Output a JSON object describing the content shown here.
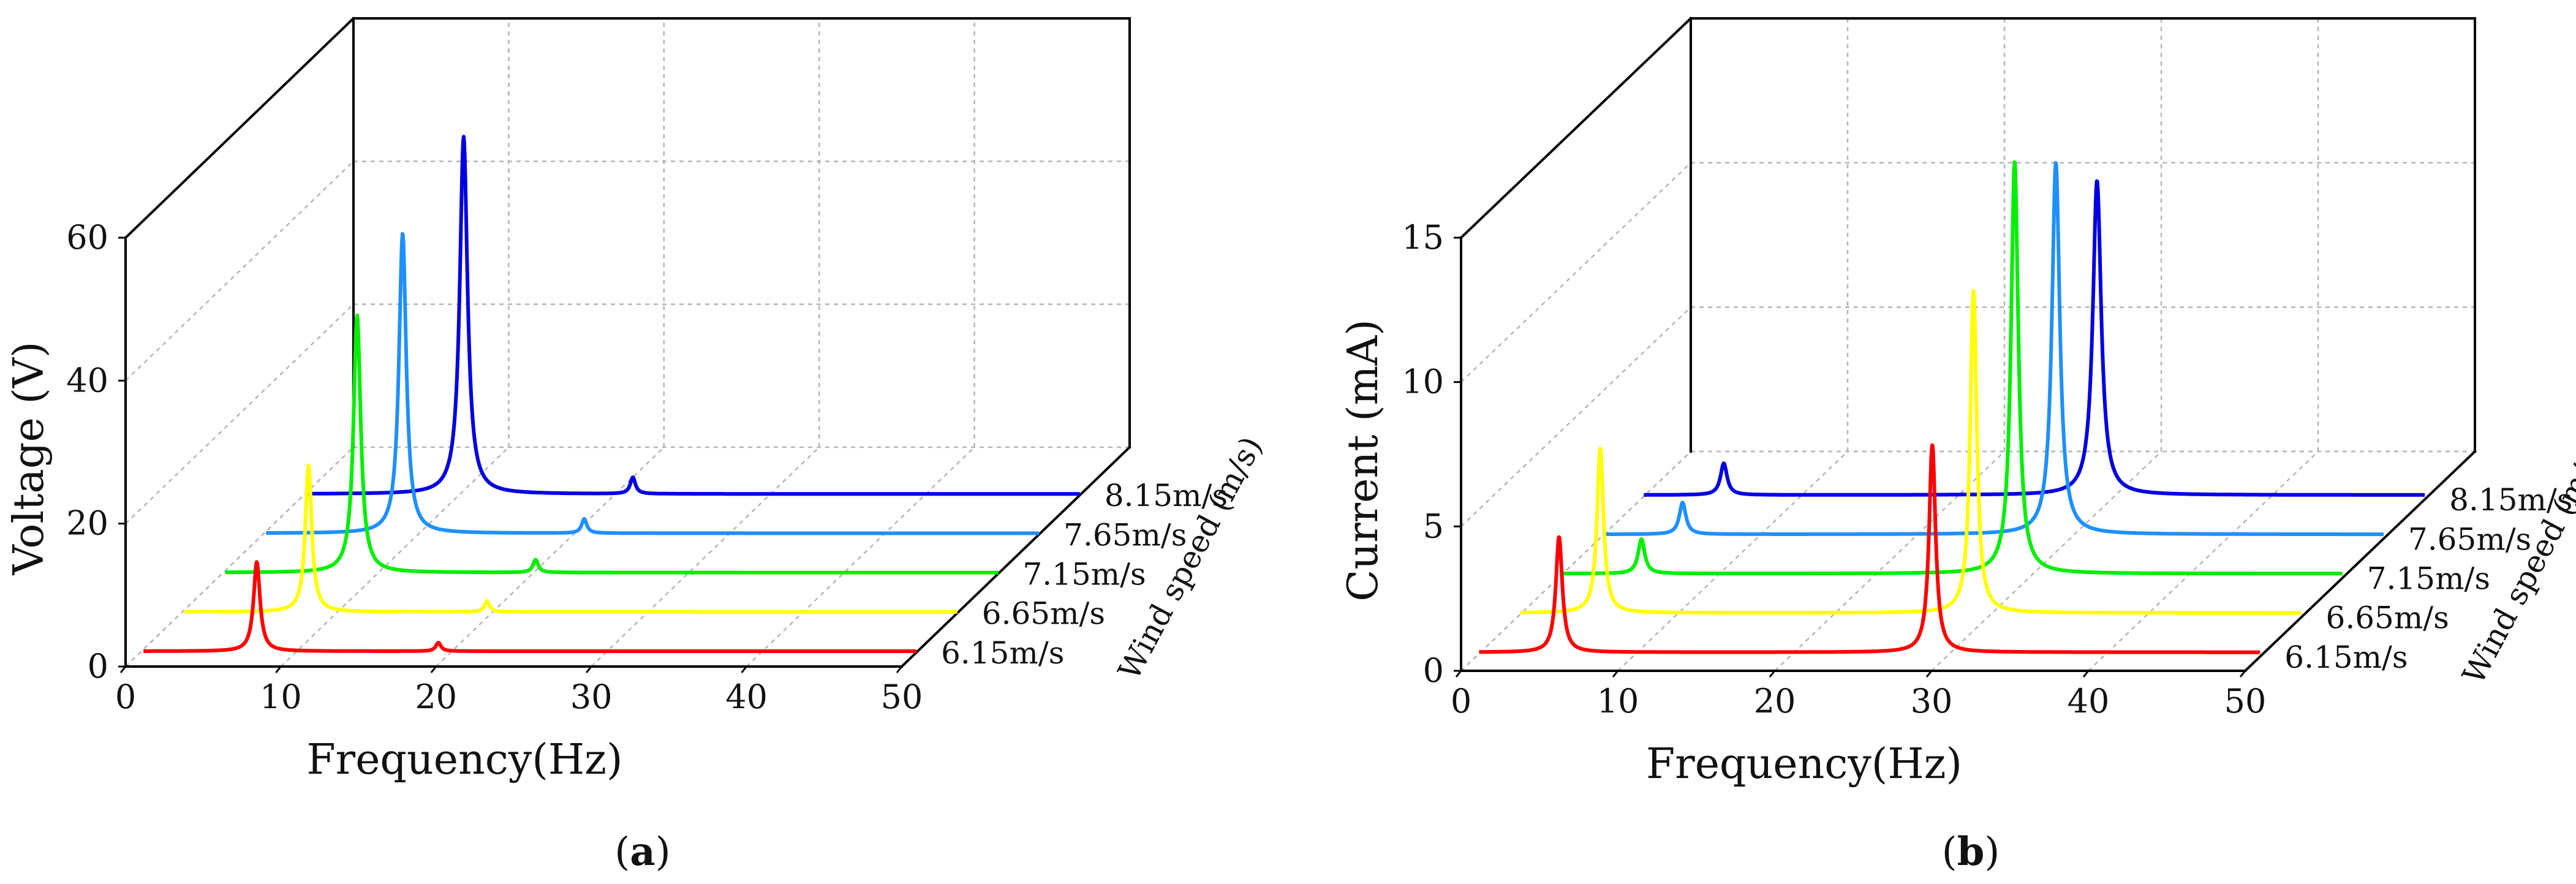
{
  "colors": {
    "6.15m/s": "#ff0000",
    "6.65m/s": "#ffff00",
    "7.15m/s": "#00ee00",
    "7.65m/s": "#1e90ff",
    "8.15m/s": "#0000e0",
    "axis": "#000000",
    "grid": "#b5b5b5"
  },
  "chart_data": [
    {
      "type": "line",
      "panel_label": "a",
      "title": "",
      "xlabel": "Frequency(Hz)",
      "ylabel": "Voltage (V)",
      "zlabel": "Wind speed (m/s)",
      "xlim": [
        0,
        50
      ],
      "ylim": [
        0,
        60
      ],
      "x_ticks": [
        "0",
        "10",
        "20",
        "30",
        "40",
        "50"
      ],
      "y_ticks": [
        "0",
        "20",
        "40",
        "60"
      ],
      "grid": true,
      "series": [
        {
          "name": "6.15m/s",
          "peaks": [
            {
              "x": 7.5,
              "y": 12.5,
              "width": 0.25
            },
            {
              "x": 19.2,
              "y": 1.2,
              "width": 0.2
            }
          ]
        },
        {
          "name": "6.65m/s",
          "peaks": [
            {
              "x": 8.2,
              "y": 20.5,
              "width": 0.25
            },
            {
              "x": 19.7,
              "y": 1.5,
              "width": 0.2
            }
          ]
        },
        {
          "name": "7.15m/s",
          "peaks": [
            {
              "x": 8.7,
              "y": 36.0,
              "width": 0.28
            },
            {
              "x": 20.2,
              "y": 1.8,
              "width": 0.2
            }
          ]
        },
        {
          "name": "7.65m/s",
          "peaks": [
            {
              "x": 9.0,
              "y": 42.0,
              "width": 0.28
            },
            {
              "x": 20.7,
              "y": 2.0,
              "width": 0.2
            }
          ]
        },
        {
          "name": "8.15m/s",
          "peaks": [
            {
              "x": 10.3,
              "y": 50.0,
              "width": 0.3
            },
            {
              "x": 21.2,
              "y": 2.3,
              "width": 0.2
            }
          ]
        }
      ]
    },
    {
      "type": "line",
      "panel_label": "b",
      "title": "",
      "xlabel": "Frequency(Hz)",
      "ylabel": "Current (mA)",
      "zlabel": "Wind speed (m/s)",
      "xlim": [
        0,
        50
      ],
      "ylim": [
        0,
        15
      ],
      "x_ticks": [
        "0",
        "10",
        "20",
        "30",
        "40",
        "50"
      ],
      "y_ticks": [
        "0",
        "5",
        "10",
        "15"
      ],
      "grid": true,
      "series": [
        {
          "name": "6.15m/s",
          "peaks": [
            {
              "x": 5.3,
              "y": 4.0,
              "width": 0.25
            },
            {
              "x": 29.1,
              "y": 7.2,
              "width": 0.25
            }
          ]
        },
        {
          "name": "6.65m/s",
          "peaks": [
            {
              "x": 5.3,
              "y": 5.7,
              "width": 0.25
            },
            {
              "x": 29.1,
              "y": 11.2,
              "width": 0.25
            }
          ]
        },
        {
          "name": "7.15m/s",
          "peaks": [
            {
              "x": 5.3,
              "y": 1.2,
              "width": 0.25
            },
            {
              "x": 29.1,
              "y": 14.3,
              "width": 0.28
            }
          ]
        },
        {
          "name": "7.65m/s",
          "peaks": [
            {
              "x": 5.3,
              "y": 1.1,
              "width": 0.25
            },
            {
              "x": 29.1,
              "y": 12.9,
              "width": 0.3
            }
          ]
        },
        {
          "name": "8.15m/s",
          "peaks": [
            {
              "x": 5.3,
              "y": 1.1,
              "width": 0.25
            },
            {
              "x": 29.1,
              "y": 10.9,
              "width": 0.32
            }
          ]
        }
      ]
    }
  ]
}
